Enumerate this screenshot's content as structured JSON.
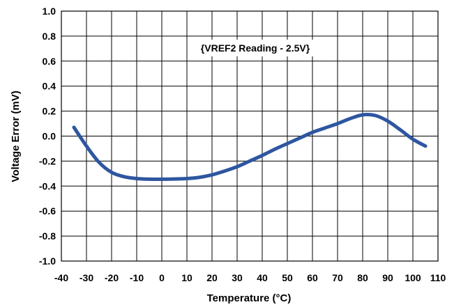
{
  "chart_data": {
    "type": "line",
    "title": "",
    "annotation": "{VREF2 Reading - 2.5V}",
    "xlabel": "Temperature (°C)",
    "ylabel": "Voltage Error (mV)",
    "xlim": [
      -40,
      110
    ],
    "ylim": [
      -1.0,
      1.0
    ],
    "xticks": [
      -40,
      -30,
      -20,
      -10,
      0,
      10,
      20,
      30,
      40,
      50,
      60,
      70,
      80,
      90,
      100,
      110
    ],
    "yticks": [
      1.0,
      0.8,
      0.6,
      0.4,
      0.2,
      0.0,
      -0.2,
      -0.4,
      -0.6,
      -0.8,
      -1.0
    ],
    "xtick_labels": [
      "-40",
      "-30",
      "-20",
      "-10",
      "0",
      "10",
      "20",
      "30",
      "40",
      "50",
      "60",
      "70",
      "80",
      "90",
      "100",
      "110"
    ],
    "ytick_labels": [
      "1.0",
      "0.8",
      "0.6",
      "0.4",
      "0.2",
      "0.0",
      "-0.2",
      "-0.4",
      "-0.6",
      "-0.8",
      "-1.0"
    ],
    "grid": true,
    "legend": "none",
    "series": [
      {
        "color": "#2e56a0",
        "x": [
          -35,
          -30,
          -25,
          -20,
          -15,
          -10,
          -5,
          0,
          5,
          10,
          15,
          20,
          25,
          30,
          35,
          40,
          45,
          50,
          55,
          60,
          65,
          70,
          75,
          80,
          85,
          90,
          95,
          100,
          105
        ],
        "y": [
          0.07,
          -0.08,
          -0.21,
          -0.29,
          -0.325,
          -0.34,
          -0.345,
          -0.345,
          -0.343,
          -0.34,
          -0.33,
          -0.31,
          -0.28,
          -0.245,
          -0.2,
          -0.155,
          -0.105,
          -0.06,
          -0.015,
          0.03,
          0.065,
          0.1,
          0.14,
          0.17,
          0.165,
          0.12,
          0.05,
          -0.025,
          -0.08
        ]
      }
    ]
  }
}
